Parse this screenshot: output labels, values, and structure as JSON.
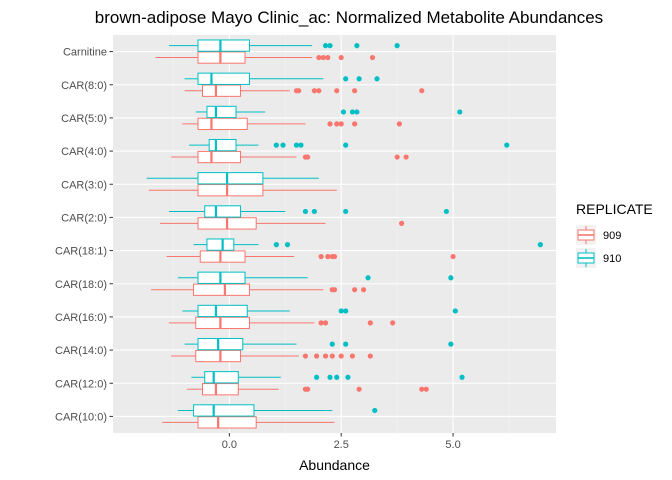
{
  "chart_data": {
    "type": "boxplot-horizontal",
    "title": "brown-adipose Mayo Clinic_ac: Normalized Metabolite Abundances",
    "xlabel": "Abundance",
    "ylabel": "",
    "xlim": [
      -2.6,
      7.3
    ],
    "xticks": [
      0.0,
      2.5,
      5.0
    ],
    "xtick_labels": [
      "0.0",
      "2.5",
      "5.0"
    ],
    "grid": true,
    "legend": {
      "title": "REPLICATE",
      "position": "right"
    },
    "categories": [
      "Carnitine",
      "CAR(8:0)",
      "CAR(5:0)",
      "CAR(4:0)",
      "CAR(3:0)",
      "CAR(2:0)",
      "CAR(18:1)",
      "CAR(18:0)",
      "CAR(16:0)",
      "CAR(14:0)",
      "CAR(12:0)",
      "CAR(10:0)"
    ],
    "series": [
      {
        "name": "909",
        "color": "#F8766D",
        "boxes": [
          {
            "wl": -1.65,
            "q1": -0.7,
            "med": -0.2,
            "q3": 0.35,
            "wh": 1.85,
            "out": [
              2.0,
              2.1,
              2.2,
              2.5,
              3.2
            ]
          },
          {
            "wl": -1.0,
            "q1": -0.6,
            "med": -0.3,
            "q3": 0.25,
            "wh": 1.35,
            "out": [
              1.5,
              1.55,
              1.9,
              2.0,
              2.4,
              2.8,
              4.3
            ]
          },
          {
            "wl": -1.05,
            "q1": -0.7,
            "med": -0.4,
            "q3": 0.4,
            "wh": 1.7,
            "out": [
              2.25,
              2.4,
              2.5,
              2.8,
              3.8
            ]
          },
          {
            "wl": -1.3,
            "q1": -0.7,
            "med": -0.4,
            "q3": 0.25,
            "wh": 1.5,
            "out": [
              1.7,
              1.75,
              3.75,
              3.95
            ]
          },
          {
            "wl": -1.8,
            "q1": -0.7,
            "med": -0.05,
            "q3": 0.75,
            "wh": 2.4,
            "out": []
          },
          {
            "wl": -1.55,
            "q1": -0.7,
            "med": -0.05,
            "q3": 0.6,
            "wh": 2.15,
            "out": [
              3.85
            ]
          },
          {
            "wl": -1.4,
            "q1": -0.65,
            "med": -0.2,
            "q3": 0.35,
            "wh": 1.45,
            "out": [
              2.05,
              2.2,
              2.3,
              2.35,
              5.0
            ]
          },
          {
            "wl": -1.75,
            "q1": -0.8,
            "med": -0.1,
            "q3": 0.45,
            "wh": 2.1,
            "out": [
              2.3,
              2.35,
              2.8,
              3.0
            ]
          },
          {
            "wl": -1.35,
            "q1": -0.75,
            "med": -0.2,
            "q3": 0.45,
            "wh": 1.9,
            "out": [
              2.05,
              2.15,
              3.15,
              3.65
            ]
          },
          {
            "wl": -1.3,
            "q1": -0.75,
            "med": -0.2,
            "q3": 0.25,
            "wh": 1.55,
            "out": [
              1.7,
              1.95,
              2.15,
              2.3,
              2.5,
              2.75,
              3.15
            ]
          },
          {
            "wl": -0.95,
            "q1": -0.6,
            "med": -0.3,
            "q3": 0.2,
            "wh": 1.1,
            "out": [
              1.7,
              1.75,
              2.9,
              4.3,
              4.4
            ]
          },
          {
            "wl": -1.5,
            "q1": -0.7,
            "med": -0.25,
            "q3": 0.6,
            "wh": 2.35,
            "out": []
          }
        ]
      },
      {
        "name": "910",
        "color": "#00BFC4",
        "boxes": [
          {
            "wl": -1.35,
            "q1": -0.7,
            "med": -0.2,
            "q3": 0.45,
            "wh": 1.85,
            "out": [
              2.15,
              2.25,
              2.85,
              3.75
            ]
          },
          {
            "wl": -1.0,
            "q1": -0.7,
            "med": -0.4,
            "q3": 0.45,
            "wh": 2.1,
            "out": [
              2.6,
              2.9,
              3.3
            ]
          },
          {
            "wl": -0.75,
            "q1": -0.5,
            "med": -0.3,
            "q3": 0.15,
            "wh": 0.8,
            "out": [
              2.55,
              2.75,
              2.85,
              5.15
            ]
          },
          {
            "wl": -0.9,
            "q1": -0.45,
            "med": -0.3,
            "q3": 0.15,
            "wh": 0.65,
            "out": [
              1.05,
              1.2,
              1.5,
              1.6,
              2.6,
              6.2
            ]
          },
          {
            "wl": -1.85,
            "q1": -0.7,
            "med": -0.05,
            "q3": 0.75,
            "wh": 2.0,
            "out": []
          },
          {
            "wl": -1.35,
            "q1": -0.55,
            "med": -0.3,
            "q3": 0.25,
            "wh": 1.25,
            "out": [
              1.7,
              1.9,
              2.6,
              4.85
            ]
          },
          {
            "wl": -0.8,
            "q1": -0.5,
            "med": -0.15,
            "q3": 0.1,
            "wh": 0.65,
            "out": [
              1.05,
              1.3,
              6.95
            ]
          },
          {
            "wl": -1.15,
            "q1": -0.7,
            "med": -0.2,
            "q3": 0.35,
            "wh": 1.75,
            "out": [
              3.1,
              4.95
            ]
          },
          {
            "wl": -1.05,
            "q1": -0.7,
            "med": -0.3,
            "q3": 0.4,
            "wh": 1.35,
            "out": [
              2.5,
              2.6,
              5.05
            ]
          },
          {
            "wl": -1.0,
            "q1": -0.7,
            "med": -0.25,
            "q3": 0.3,
            "wh": 1.5,
            "out": [
              2.3,
              2.6,
              4.95
            ]
          },
          {
            "wl": -0.85,
            "q1": -0.55,
            "med": -0.35,
            "q3": 0.2,
            "wh": 1.15,
            "out": [
              1.95,
              2.25,
              2.4,
              2.65,
              5.2
            ]
          },
          {
            "wl": -1.15,
            "q1": -0.8,
            "med": -0.35,
            "q3": 0.55,
            "wh": 2.3,
            "out": [
              3.25
            ]
          }
        ]
      }
    ]
  }
}
